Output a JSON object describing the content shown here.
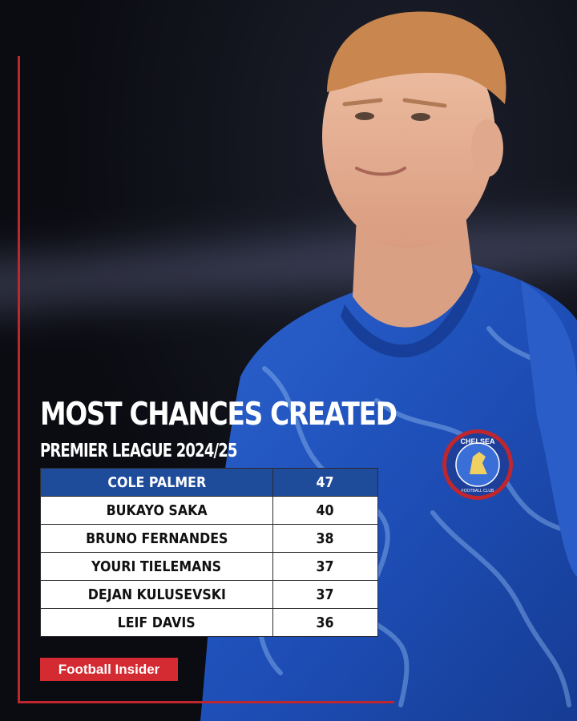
{
  "header": {
    "title": "MOST CHANCES CREATED",
    "subtitle": "PREMIER LEAGUE 2024/25"
  },
  "ranking": {
    "rows": [
      {
        "player": "COLE PALMER",
        "value": "47"
      },
      {
        "player": "BUKAYO SAKA",
        "value": "40"
      },
      {
        "player": "BRUNO FERNANDES",
        "value": "38"
      },
      {
        "player": "YOURI TIELEMANS",
        "value": "37"
      },
      {
        "player": "DEJAN KULUSEVSKI",
        "value": "37"
      },
      {
        "player": "LEIF DAVIS",
        "value": "36"
      }
    ]
  },
  "branding": {
    "logo_text": "Football Insider",
    "badge_text": "CHELSEA",
    "badge_subtext": "FOOTBALL CLUB"
  },
  "colors": {
    "accent": "#c0262d",
    "highlight_row": "#1f4b9b",
    "shirt": "#1e4fb8"
  }
}
